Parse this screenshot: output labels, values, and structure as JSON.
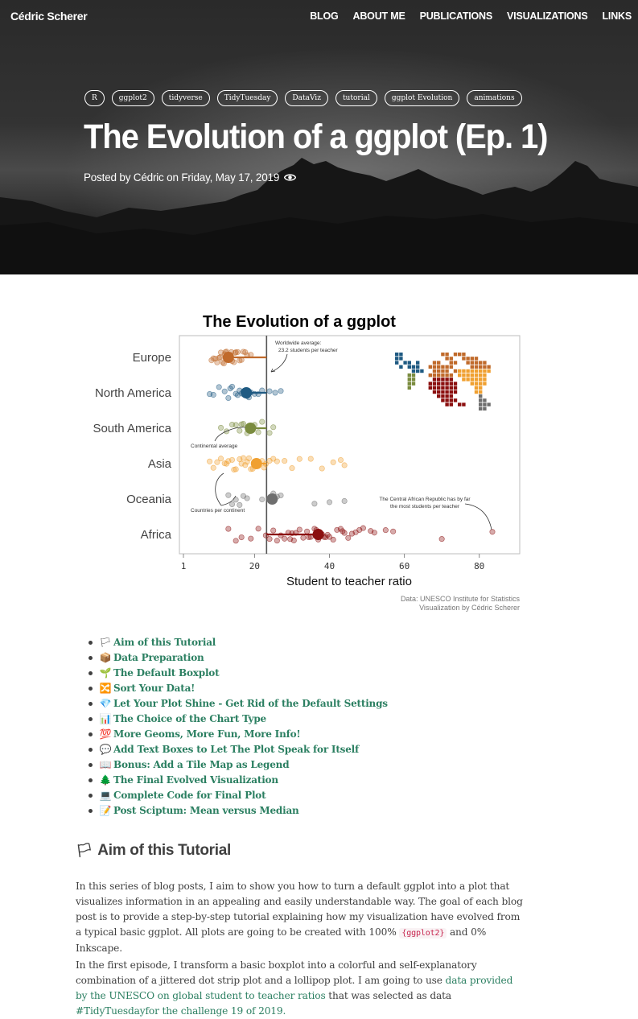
{
  "site": {
    "brand": "Cédric Scherer",
    "nav": [
      "BLOG",
      "ABOUT ME",
      "PUBLICATIONS",
      "VISUALIZATIONS",
      "LINKS"
    ]
  },
  "post": {
    "tags": [
      "R",
      "ggplot2",
      "tidyverse",
      "TidyTuesday",
      "DataViz",
      "tutorial",
      "ggplot Evolution",
      "animations"
    ],
    "title": "The Evolution of a ggplot (Ep. 1)",
    "meta": "Posted by Cédric on Friday, May 17, 2019"
  },
  "chart_data": {
    "type": "scatter",
    "title": "The Evolution of a ggplot",
    "xlabel": "Student to teacher ratio",
    "ylabel": "",
    "xlim": [
      1,
      90
    ],
    "x_ticks": [
      "1",
      "20",
      "40",
      "60",
      "80"
    ],
    "x_tick_values": [
      1,
      20,
      40,
      60,
      80
    ],
    "categories": [
      "Europe",
      "North America",
      "South America",
      "Asia",
      "Oceania",
      "Africa"
    ],
    "worldwide_average": 23.2,
    "series": [
      {
        "name": "Europe",
        "color": "#c06a2b",
        "mean": 13.0,
        "points": [
          8.5,
          9,
          10,
          10.5,
          11,
          11.5,
          12,
          12.5,
          13,
          13.5,
          14,
          14.5,
          15,
          16,
          16.5,
          17,
          18,
          19,
          9.5,
          11.8,
          12.2,
          14.8,
          15.5,
          10.8,
          17.5,
          13.8
        ]
      },
      {
        "name": "North America",
        "color": "#1f5a82",
        "mean": 17.8,
        "points": [
          8,
          9,
          10.5,
          12,
          13,
          14,
          15,
          15.5,
          16,
          16.5,
          17,
          17.5,
          18,
          19,
          20,
          21,
          22,
          24,
          25.5,
          27,
          13.5,
          18.5
        ]
      },
      {
        "name": "South America",
        "color": "#7a8b3e",
        "mean": 18.9,
        "points": [
          11,
          12.5,
          14,
          15,
          16,
          17,
          18,
          19,
          20,
          21,
          22,
          24,
          25,
          16.5,
          19.5
        ]
      },
      {
        "name": "Asia",
        "color": "#f0a030",
        "mean": 20.5,
        "points": [
          8,
          9,
          10,
          11,
          12,
          13,
          14,
          15,
          16,
          17,
          17.5,
          18,
          18.5,
          19,
          20,
          21,
          22,
          23,
          24,
          25,
          26,
          28,
          30,
          32,
          35,
          38,
          41,
          43,
          44,
          12.5,
          14.5,
          16.5,
          19.5,
          22.5
        ]
      },
      {
        "name": "Oceania",
        "color": "#6e6e6e",
        "mean": 24.7,
        "points": [
          13,
          14,
          15,
          16,
          17,
          18,
          22,
          24,
          25,
          26,
          27,
          36,
          40,
          44
        ]
      },
      {
        "name": "Africa",
        "color": "#8b0f0f",
        "mean": 37.0,
        "points": [
          13,
          15,
          16.5,
          19,
          21,
          23,
          24,
          25,
          26,
          27,
          28,
          29,
          30,
          31,
          32,
          33,
          34,
          35,
          36,
          37,
          38,
          39,
          40,
          41,
          42,
          43,
          44,
          45,
          46,
          47,
          49,
          51,
          55,
          57,
          70,
          83.5,
          30.5,
          34.5,
          36.5,
          39.5,
          43.5,
          48,
          52,
          29.5,
          38.5
        ]
      }
    ],
    "annotations": [
      {
        "text": "Worldwide average:",
        "text2": "23.2 students per teacher"
      },
      {
        "text": "Continental average"
      },
      {
        "text": "Countries per continent"
      },
      {
        "text": "The Central African Republic has by far",
        "text2": "the most students per teacher"
      }
    ],
    "caption": [
      "Data: UNESCO Institute for Statistics",
      "Visualization by Cédric Scherer"
    ]
  },
  "toc": [
    {
      "emoji": "🏳",
      "label": "Aim of this Tutorial"
    },
    {
      "emoji": "📦",
      "label": "Data Preparation"
    },
    {
      "emoji": "🌱",
      "label": "The Default Boxplot"
    },
    {
      "emoji": "🔀",
      "label": "Sort Your Data!"
    },
    {
      "emoji": "💎",
      "label": "Let Your Plot Shine - Get Rid of the Default Settings"
    },
    {
      "emoji": "📊",
      "label": "The Choice of the Chart Type"
    },
    {
      "emoji": "💯",
      "label": "More Geoms, More Fun, More Info!"
    },
    {
      "emoji": "💬",
      "label": "Add Text Boxes to Let The Plot Speak for Itself"
    },
    {
      "emoji": "📖",
      "label": "Bonus: Add a Tile Map as Legend"
    },
    {
      "emoji": "🌲",
      "label": "The Final Evolved Visualization"
    },
    {
      "emoji": "💻",
      "label": "Complete Code for Final Plot"
    },
    {
      "emoji": "📝",
      "label": "Post Sciptum: Mean versus Median"
    }
  ],
  "section": {
    "emoji": "🏳",
    "heading": "Aim of this Tutorial",
    "p1_a": "In this series of blog posts, I aim to show you how to turn a default ggplot into a plot that visualizes information in an appealing and easily understandable way. The goal of each blog post is to provide a step-by-step tutorial explaining how my visualization have evolved from a typical basic ggplot. All plots are going to be created with 100%",
    "p1_code": "{ggplot2}",
    "p1_b": "and 0% Inkscape.",
    "p2_a": "In the first episode, I transform a basic boxplot into a colorful and self-explanatory combination of a jittered dot strip plot and a lollipop plot. I am going to use",
    "p2_link1": "data provided by the UNESCO on global student to teacher ratios",
    "p2_b": "that was selected as data",
    "p2_link2": "#TidyTuesdayfor the challenge 19 of 2019."
  },
  "colors": {
    "link": "#2b7f61",
    "text": "#404040"
  }
}
